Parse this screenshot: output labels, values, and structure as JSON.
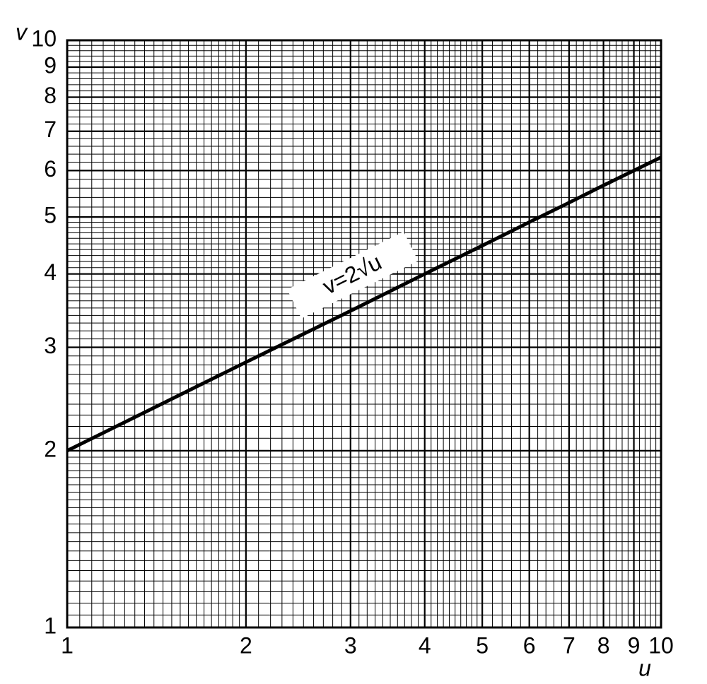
{
  "chart_data": {
    "type": "line",
    "x_label": "u",
    "y_label": "v",
    "annotation": "v=2√u",
    "x": [
      1,
      2,
      3,
      4,
      5,
      6,
      7,
      8,
      9,
      10
    ],
    "series": [
      {
        "name": "v=2√u",
        "color": "#000000",
        "values": [
          2,
          2.83,
          3.46,
          4,
          4.47,
          4.9,
          5.29,
          5.66,
          6,
          6.32
        ]
      }
    ],
    "xscale": "log",
    "yscale": "log",
    "xlim": [
      1,
      10
    ],
    "ylim": [
      1,
      10
    ],
    "xticks": [
      1,
      2,
      3,
      4,
      5,
      6,
      7,
      8,
      9,
      10
    ],
    "yticks": [
      1,
      2,
      3,
      4,
      5,
      6,
      7,
      8,
      9,
      10
    ],
    "grid": true,
    "minor_grid": true
  }
}
